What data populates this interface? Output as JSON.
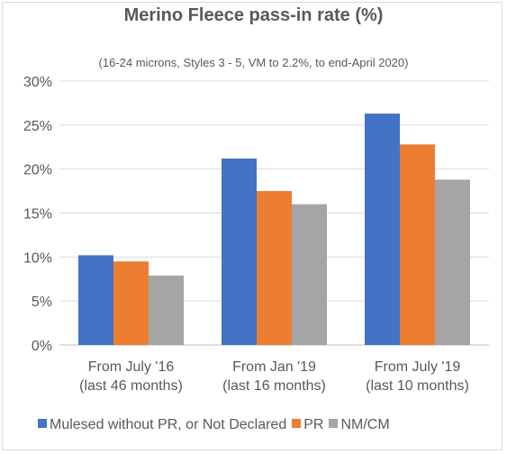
{
  "chart_data": {
    "type": "bar",
    "title": "Merino Fleece pass-in rate (%)",
    "subtitle": "(16-24 microns, Styles 3 - 5, VM to 2.2%, to end-April 2020)",
    "categories": [
      [
        "From July '16",
        "(last 46 months)"
      ],
      [
        "From Jan '19",
        "(last 16 months)"
      ],
      [
        "From July '19",
        "(last 10 months)"
      ]
    ],
    "series": [
      {
        "name": "Mulesed without PR, or Not Declared",
        "color": "#4472c4",
        "values": [
          10.2,
          21.2,
          26.3
        ]
      },
      {
        "name": "PR",
        "color": "#ed7d31",
        "values": [
          9.5,
          17.5,
          22.8
        ]
      },
      {
        "name": "NM/CM",
        "color": "#a5a5a5",
        "values": [
          7.9,
          16.0,
          18.8
        ]
      }
    ],
    "ylim": [
      0,
      30
    ],
    "yticks": [
      "0%",
      "5%",
      "10%",
      "15%",
      "20%",
      "25%",
      "30%"
    ],
    "ytick_values": [
      0,
      5,
      10,
      15,
      20,
      25,
      30
    ],
    "grid": true,
    "legend_position": "bottom",
    "xlabel": "",
    "ylabel": ""
  }
}
